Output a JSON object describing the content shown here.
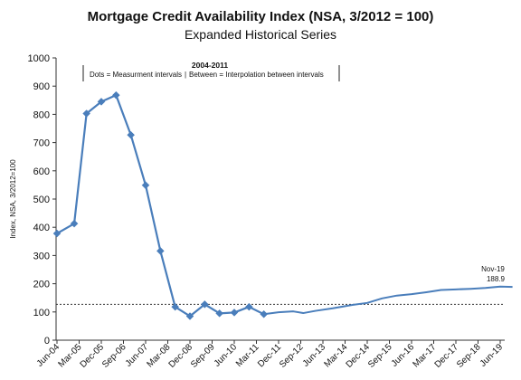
{
  "chart_data": {
    "type": "line",
    "title": "Mortgage Credit Availability Index (NSA, 3/2012 = 100)",
    "subtitle": "Expanded Historical Series",
    "ylabel": "Index, NSA, 3/2012=100",
    "ylim": [
      0,
      1000
    ],
    "yticks": [
      0,
      100,
      200,
      300,
      400,
      500,
      600,
      700,
      800,
      900,
      1000
    ],
    "xtick_labels": [
      "Jun-04",
      "Mar-05",
      "Dec-05",
      "Sep-06",
      "Jun-07",
      "Mar-08",
      "Dec-08",
      "Sep-09",
      "Jun-10",
      "Mar-11",
      "Dec-11",
      "Sep-12",
      "Jun-13",
      "Mar-14",
      "Dec-14",
      "Sep-15",
      "Jun-16",
      "Mar-17",
      "Dec-17",
      "Sep-18",
      "Jun-19"
    ],
    "reference_line": {
      "value": 127,
      "style": "dotted"
    },
    "annotations": {
      "period": "2004-2011",
      "note_left": "Dots = Measurment intervals",
      "note_right": "Between = Interpolation between intervals",
      "end_date": "Nov-19",
      "end_value": "188.9"
    },
    "series": [
      {
        "color": "#4a7ebb",
        "markers": [
          {
            "x": "2004-06",
            "y": 378
          },
          {
            "x": "2005-01",
            "y": 413
          },
          {
            "x": "2005-06",
            "y": 803
          },
          {
            "x": "2005-12",
            "y": 845
          },
          {
            "x": "2006-06",
            "y": 868
          },
          {
            "x": "2006-12",
            "y": 727
          },
          {
            "x": "2007-06",
            "y": 549
          },
          {
            "x": "2007-12",
            "y": 316
          },
          {
            "x": "2008-06",
            "y": 118
          },
          {
            "x": "2008-12",
            "y": 85
          },
          {
            "x": "2009-06",
            "y": 127
          },
          {
            "x": "2009-12",
            "y": 95
          },
          {
            "x": "2010-06",
            "y": 98
          },
          {
            "x": "2010-12",
            "y": 118
          },
          {
            "x": "2011-06",
            "y": 92
          }
        ],
        "points": [
          {
            "x": "2011-06",
            "y": 92
          },
          {
            "x": "2011-12",
            "y": 99
          },
          {
            "x": "2012-06",
            "y": 102
          },
          {
            "x": "2012-10",
            "y": 96
          },
          {
            "x": "2013-03",
            "y": 104
          },
          {
            "x": "2013-10",
            "y": 113
          },
          {
            "x": "2014-06",
            "y": 125
          },
          {
            "x": "2014-12",
            "y": 132
          },
          {
            "x": "2015-06",
            "y": 148
          },
          {
            "x": "2015-12",
            "y": 158
          },
          {
            "x": "2016-06",
            "y": 163
          },
          {
            "x": "2016-12",
            "y": 170
          },
          {
            "x": "2017-06",
            "y": 178
          },
          {
            "x": "2017-12",
            "y": 180
          },
          {
            "x": "2018-06",
            "y": 182
          },
          {
            "x": "2018-12",
            "y": 185
          },
          {
            "x": "2019-06",
            "y": 190
          },
          {
            "x": "2019-11",
            "y": 188.9
          }
        ]
      }
    ]
  }
}
